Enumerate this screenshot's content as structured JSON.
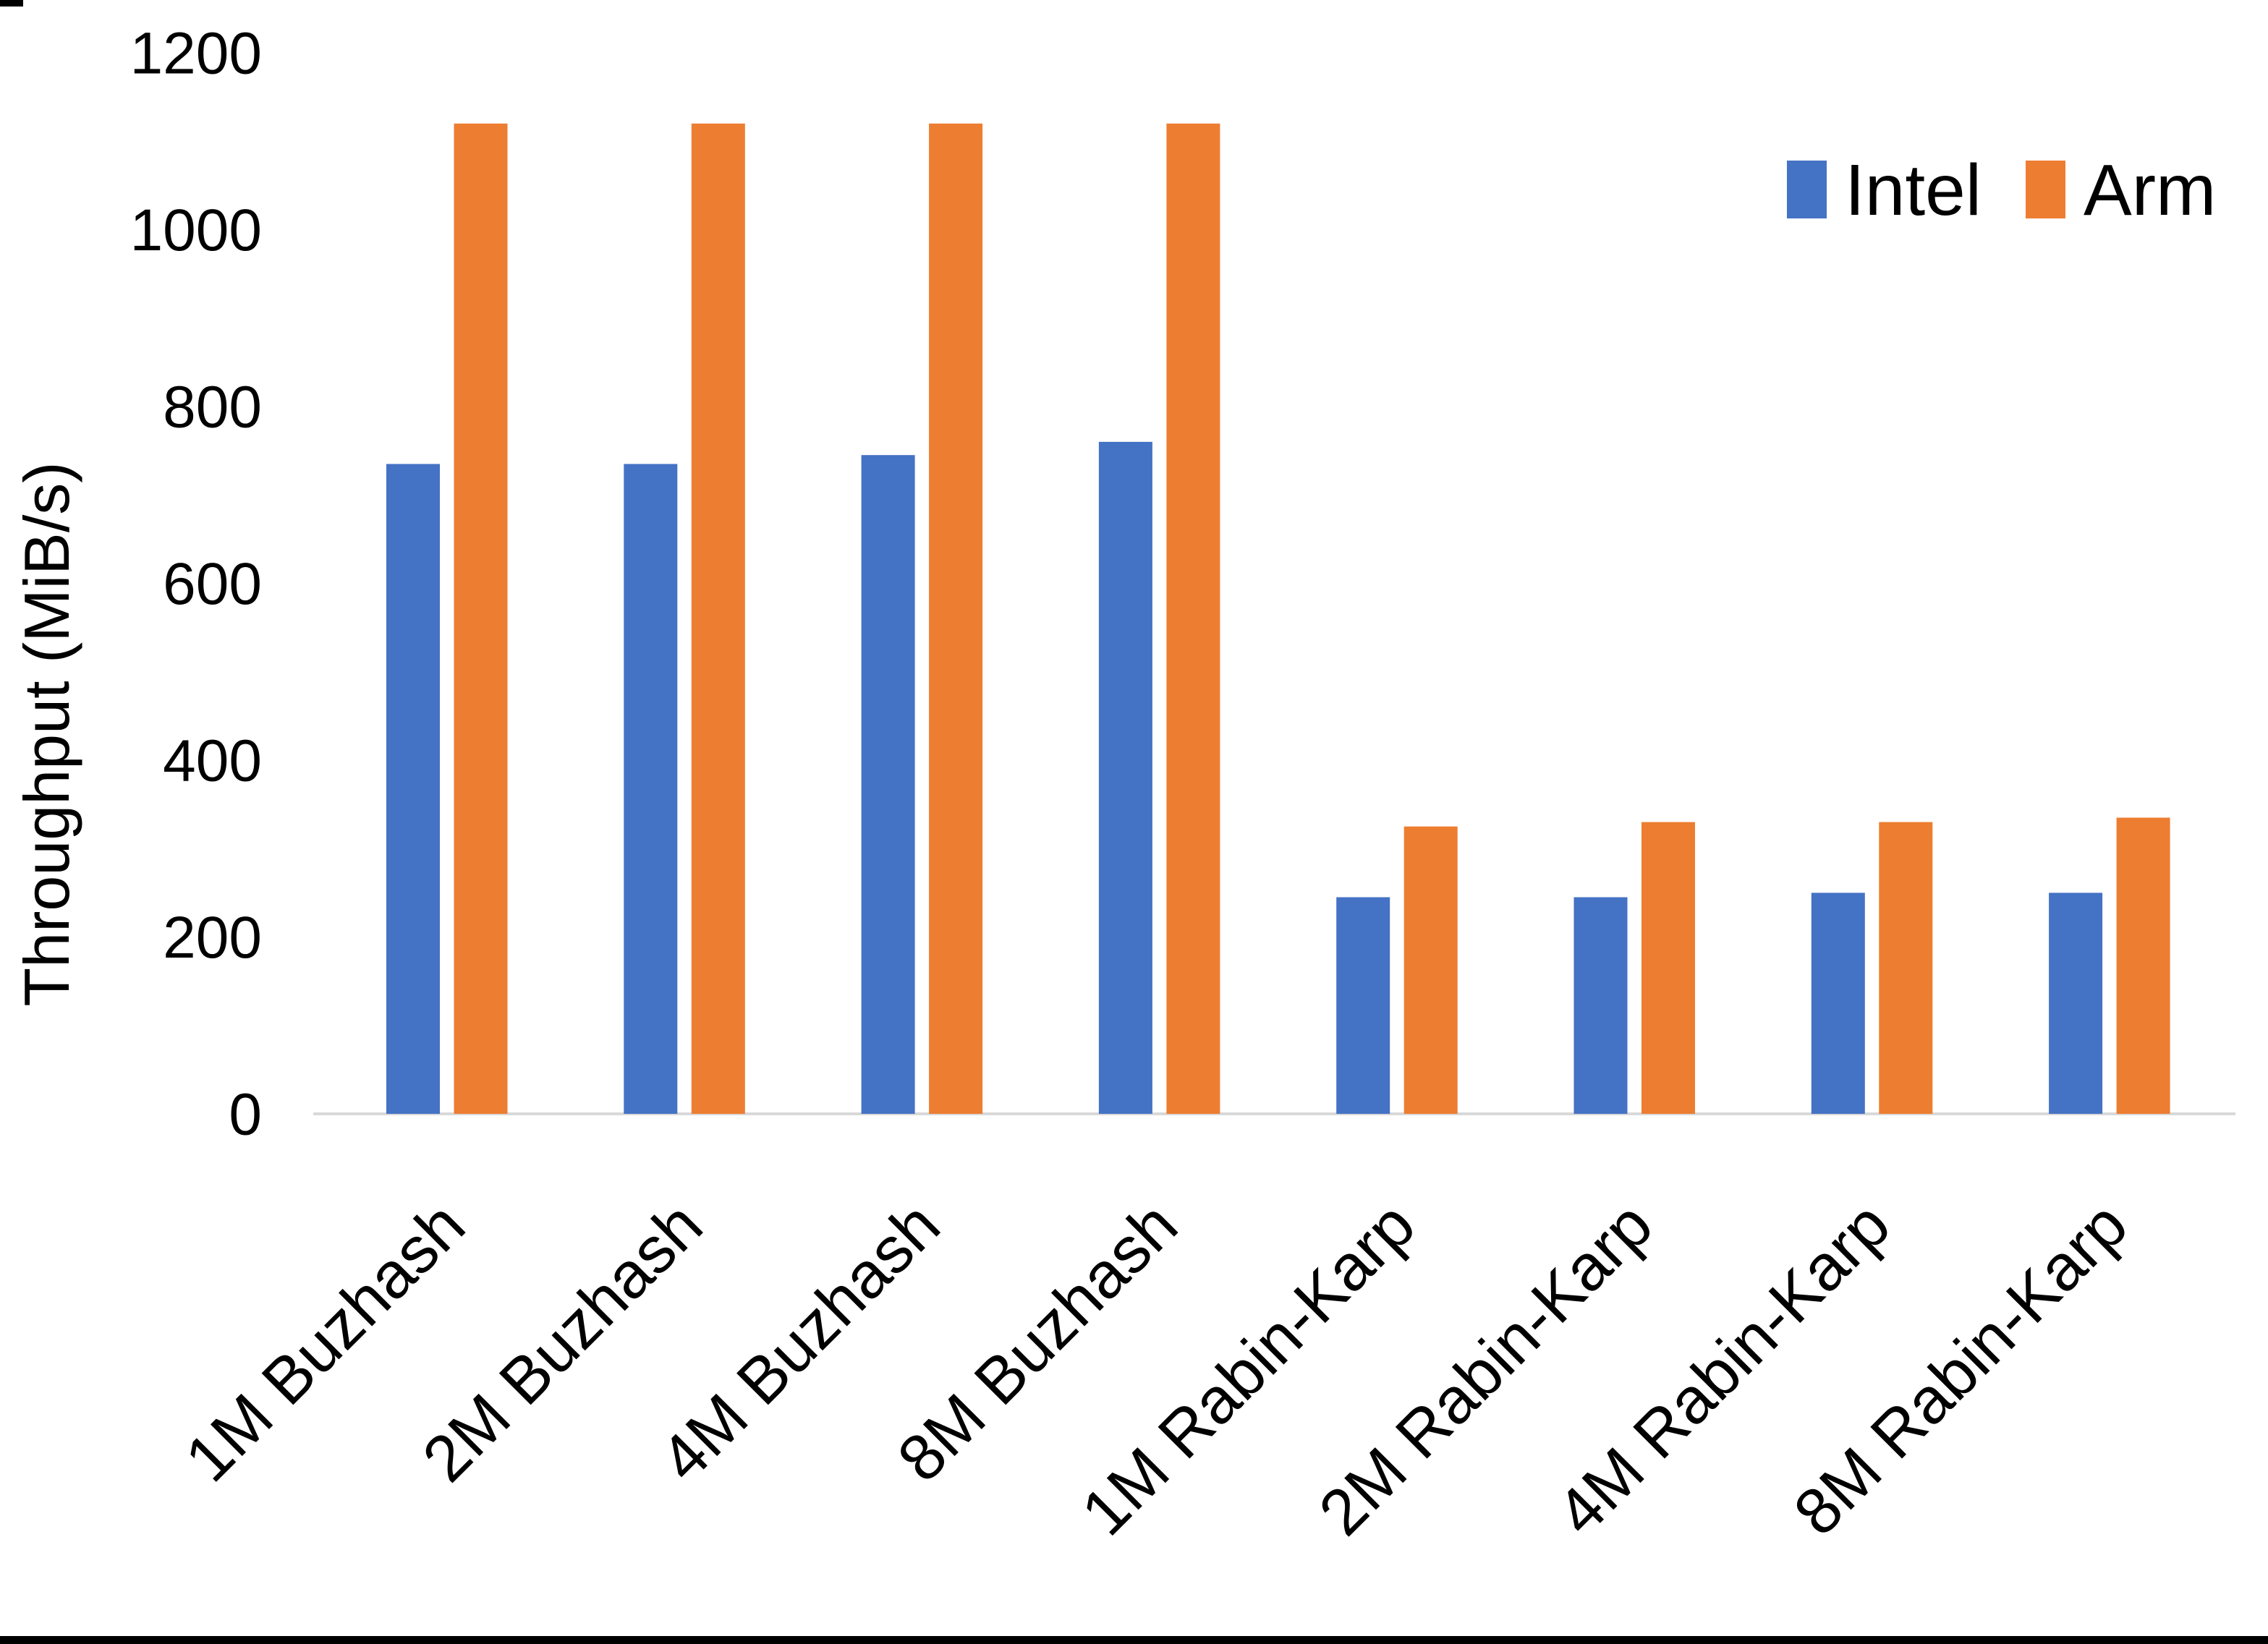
{
  "chart_data": {
    "type": "bar",
    "title": "",
    "xlabel": "",
    "ylabel": "Throughput (MiB/s)",
    "ylim": [
      0,
      1200
    ],
    "yticks": [
      0,
      200,
      400,
      600,
      800,
      1000,
      1200
    ],
    "grid": false,
    "legend_position": "top-right",
    "categories": [
      "1M Buzhash",
      "2M Buzhash",
      "4M Buzhash",
      "8M Buzhash",
      "1M Rabin-Karp",
      "2M Rabin-Karp",
      "4M Rabin-Karp",
      "8M Rabin-Karp"
    ],
    "series": [
      {
        "name": "Intel",
        "color": "#4472C4",
        "values": [
          735,
          735,
          745,
          760,
          245,
          245,
          250,
          250
        ]
      },
      {
        "name": "Arm",
        "color": "#ED7D31",
        "values": [
          1120,
          1120,
          1120,
          1120,
          325,
          330,
          330,
          335
        ]
      }
    ],
    "axis_line_color": "#D9D9D9",
    "text_color": "#000000"
  }
}
